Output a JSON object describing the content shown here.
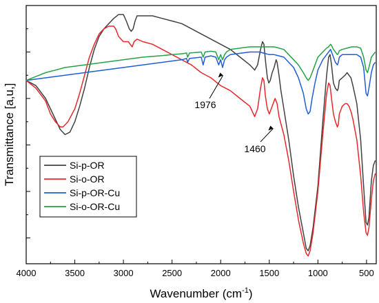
{
  "chart_data": {
    "type": "line",
    "xlabel": "Wavenumber (cm",
    "xlabel_sup": "-1",
    "xlabel_end": ")",
    "ylabel": "Transmittance [a,u,]",
    "xlim": [
      4000,
      400
    ],
    "x_reversed": true,
    "ylim": [
      0,
      100
    ],
    "grid": false,
    "y_tick_labels": false,
    "legend_placement": "lower-left",
    "x_ticks": [
      {
        "value": 4000,
        "label": "4000"
      },
      {
        "value": 3500,
        "label": "3500"
      },
      {
        "value": 3000,
        "label": "3000"
      },
      {
        "value": 2500,
        "label": "2500"
      },
      {
        "value": 2000,
        "label": "2000"
      },
      {
        "value": 1500,
        "label": "1500"
      },
      {
        "value": 1000,
        "label": "1000"
      },
      {
        "value": 500,
        "label": "500"
      }
    ],
    "annotations": [
      {
        "label": "1976",
        "x": 1976,
        "y": 74
      },
      {
        "label": "1460",
        "x": 1460,
        "y": 54
      }
    ],
    "series": [
      {
        "name": "Si-p-OR",
        "color": "#404040",
        "points": [
          [
            4000,
            71
          ],
          [
            3900,
            69
          ],
          [
            3800,
            64
          ],
          [
            3700,
            56
          ],
          [
            3650,
            52
          ],
          [
            3600,
            50
          ],
          [
            3550,
            51
          ],
          [
            3500,
            55
          ],
          [
            3450,
            61
          ],
          [
            3400,
            68
          ],
          [
            3350,
            76
          ],
          [
            3300,
            83
          ],
          [
            3250,
            88
          ],
          [
            3200,
            91
          ],
          [
            3150,
            93
          ],
          [
            3100,
            95
          ],
          [
            3050,
            96.5
          ],
          [
            3000,
            96.5
          ],
          [
            2970,
            94
          ],
          [
            2940,
            91
          ],
          [
            2920,
            90
          ],
          [
            2900,
            91
          ],
          [
            2880,
            94
          ],
          [
            2860,
            96
          ],
          [
            2800,
            96
          ],
          [
            2700,
            96
          ],
          [
            2600,
            95
          ],
          [
            2500,
            94
          ],
          [
            2400,
            93
          ],
          [
            2300,
            91
          ],
          [
            2200,
            89
          ],
          [
            2100,
            87
          ],
          [
            2000,
            85
          ],
          [
            1900,
            83
          ],
          [
            1800,
            80
          ],
          [
            1700,
            77
          ],
          [
            1650,
            75
          ],
          [
            1620,
            77
          ],
          [
            1590,
            83
          ],
          [
            1570,
            86
          ],
          [
            1555,
            85
          ],
          [
            1540,
            79
          ],
          [
            1520,
            72
          ],
          [
            1505,
            70
          ],
          [
            1490,
            71
          ],
          [
            1470,
            74
          ],
          [
            1450,
            76
          ],
          [
            1430,
            79
          ],
          [
            1420,
            78
          ],
          [
            1400,
            73
          ],
          [
            1380,
            67
          ],
          [
            1350,
            60
          ],
          [
            1300,
            48
          ],
          [
            1250,
            34
          ],
          [
            1200,
            22
          ],
          [
            1150,
            12
          ],
          [
            1120,
            6
          ],
          [
            1100,
            5
          ],
          [
            1080,
            7
          ],
          [
            1050,
            14
          ],
          [
            1000,
            30
          ],
          [
            950,
            55
          ],
          [
            910,
            73
          ],
          [
            890,
            80
          ],
          [
            875,
            81
          ],
          [
            860,
            77
          ],
          [
            840,
            70
          ],
          [
            820,
            68
          ],
          [
            800,
            67
          ],
          [
            790,
            68
          ],
          [
            780,
            71
          ],
          [
            750,
            72
          ],
          [
            720,
            73
          ],
          [
            700,
            74
          ],
          [
            680,
            73
          ],
          [
            660,
            72
          ],
          [
            640,
            69
          ],
          [
            600,
            62
          ],
          [
            560,
            48
          ],
          [
            530,
            30
          ],
          [
            505,
            16
          ],
          [
            490,
            15
          ],
          [
            475,
            18
          ],
          [
            450,
            32
          ],
          [
            430,
            38
          ],
          [
            410,
            40
          ]
        ]
      },
      {
        "name": "Si-o-OR",
        "color": "#e8262b",
        "points": [
          [
            4000,
            71
          ],
          [
            3900,
            68
          ],
          [
            3800,
            63
          ],
          [
            3750,
            58
          ],
          [
            3700,
            55
          ],
          [
            3650,
            53
          ],
          [
            3620,
            53
          ],
          [
            3570,
            55
          ],
          [
            3500,
            60
          ],
          [
            3450,
            66
          ],
          [
            3400,
            73
          ],
          [
            3350,
            80
          ],
          [
            3300,
            85
          ],
          [
            3250,
            89
          ],
          [
            3200,
            91
          ],
          [
            3150,
            92
          ],
          [
            3100,
            92
          ],
          [
            3080,
            91
          ],
          [
            3050,
            88
          ],
          [
            3000,
            86
          ],
          [
            2950,
            86
          ],
          [
            2930,
            85
          ],
          [
            2910,
            84
          ],
          [
            2890,
            86
          ],
          [
            2860,
            87
          ],
          [
            2800,
            86
          ],
          [
            2700,
            85
          ],
          [
            2600,
            83
          ],
          [
            2500,
            81
          ],
          [
            2400,
            79
          ],
          [
            2300,
            77
          ],
          [
            2200,
            74
          ],
          [
            2100,
            72
          ],
          [
            2000,
            69
          ],
          [
            1900,
            67
          ],
          [
            1800,
            64
          ],
          [
            1700,
            61
          ],
          [
            1650,
            57
          ],
          [
            1620,
            60
          ],
          [
            1590,
            68
          ],
          [
            1570,
            72
          ],
          [
            1555,
            71
          ],
          [
            1540,
            65
          ],
          [
            1520,
            60
          ],
          [
            1500,
            58
          ],
          [
            1480,
            60
          ],
          [
            1460,
            62
          ],
          [
            1440,
            64
          ],
          [
            1420,
            62
          ],
          [
            1400,
            57
          ],
          [
            1350,
            50
          ],
          [
            1300,
            40
          ],
          [
            1250,
            28
          ],
          [
            1200,
            17
          ],
          [
            1150,
            8
          ],
          [
            1120,
            4
          ],
          [
            1100,
            3
          ],
          [
            1080,
            5
          ],
          [
            1050,
            12
          ],
          [
            1000,
            28
          ],
          [
            950,
            50
          ],
          [
            910,
            66
          ],
          [
            890,
            70
          ],
          [
            875,
            69
          ],
          [
            860,
            64
          ],
          [
            840,
            58
          ],
          [
            820,
            55
          ],
          [
            800,
            53
          ],
          [
            790,
            54
          ],
          [
            780,
            58
          ],
          [
            750,
            61
          ],
          [
            720,
            62
          ],
          [
            700,
            62
          ],
          [
            680,
            61
          ],
          [
            660,
            59
          ],
          [
            640,
            56
          ],
          [
            600,
            48
          ],
          [
            560,
            34
          ],
          [
            530,
            20
          ],
          [
            505,
            12
          ],
          [
            490,
            11
          ],
          [
            475,
            14
          ],
          [
            450,
            25
          ],
          [
            430,
            32
          ],
          [
            410,
            35
          ]
        ]
      },
      {
        "name": "Si-p-OR-Cu",
        "color": "#1f5cd6",
        "points": [
          [
            4000,
            71
          ],
          [
            3900,
            71.5
          ],
          [
            3800,
            72
          ],
          [
            3700,
            72.5
          ],
          [
            3600,
            73
          ],
          [
            3500,
            73.5
          ],
          [
            3400,
            74
          ],
          [
            3300,
            74.5
          ],
          [
            3200,
            75
          ],
          [
            3100,
            75.5
          ],
          [
            3000,
            76
          ],
          [
            2900,
            76.5
          ],
          [
            2800,
            77
          ],
          [
            2700,
            77.5
          ],
          [
            2600,
            78
          ],
          [
            2500,
            78.5
          ],
          [
            2400,
            79
          ],
          [
            2350,
            79.5
          ],
          [
            2340,
            78
          ],
          [
            2320,
            79.5
          ],
          [
            2200,
            80
          ],
          [
            2180,
            77
          ],
          [
            2160,
            80
          ],
          [
            2100,
            80.5
          ],
          [
            2050,
            80
          ],
          [
            2020,
            77
          ],
          [
            2000,
            79
          ],
          [
            1980,
            76
          ],
          [
            1960,
            79
          ],
          [
            1940,
            80
          ],
          [
            1900,
            81
          ],
          [
            1800,
            81.5
          ],
          [
            1700,
            82
          ],
          [
            1650,
            82
          ],
          [
            1620,
            82
          ],
          [
            1600,
            82
          ],
          [
            1550,
            81.5
          ],
          [
            1500,
            81
          ],
          [
            1450,
            81
          ],
          [
            1400,
            80.5
          ],
          [
            1350,
            80
          ],
          [
            1300,
            78
          ],
          [
            1250,
            76
          ],
          [
            1200,
            72
          ],
          [
            1150,
            66
          ],
          [
            1120,
            60
          ],
          [
            1100,
            58
          ],
          [
            1080,
            59
          ],
          [
            1060,
            64
          ],
          [
            1030,
            70
          ],
          [
            1000,
            75
          ],
          [
            950,
            79
          ],
          [
            910,
            81
          ],
          [
            890,
            82
          ],
          [
            870,
            83
          ],
          [
            860,
            82
          ],
          [
            840,
            80
          ],
          [
            820,
            78
          ],
          [
            800,
            77
          ],
          [
            790,
            78
          ],
          [
            780,
            80
          ],
          [
            750,
            81
          ],
          [
            700,
            81
          ],
          [
            650,
            81
          ],
          [
            600,
            81
          ],
          [
            560,
            80
          ],
          [
            530,
            76
          ],
          [
            505,
            66
          ],
          [
            490,
            65
          ],
          [
            475,
            68
          ],
          [
            450,
            74
          ],
          [
            430,
            77
          ],
          [
            410,
            78
          ]
        ]
      },
      {
        "name": "Si-o-OR-Cu",
        "color": "#22a245",
        "points": [
          [
            4000,
            71
          ],
          [
            3900,
            72.5
          ],
          [
            3800,
            74
          ],
          [
            3700,
            75
          ],
          [
            3600,
            76
          ],
          [
            3500,
            76.5
          ],
          [
            3400,
            77
          ],
          [
            3300,
            77.5
          ],
          [
            3200,
            78
          ],
          [
            3100,
            78.5
          ],
          [
            3000,
            79
          ],
          [
            2900,
            79.5
          ],
          [
            2800,
            80
          ],
          [
            2700,
            80.3
          ],
          [
            2600,
            80.6
          ],
          [
            2500,
            81
          ],
          [
            2400,
            81.3
          ],
          [
            2350,
            81.6
          ],
          [
            2340,
            80
          ],
          [
            2320,
            81.6
          ],
          [
            2200,
            82
          ],
          [
            2180,
            80
          ],
          [
            2160,
            82
          ],
          [
            2100,
            82.3
          ],
          [
            2050,
            82
          ],
          [
            2020,
            79
          ],
          [
            2000,
            81
          ],
          [
            1980,
            79
          ],
          [
            1960,
            81
          ],
          [
            1940,
            82
          ],
          [
            1900,
            83
          ],
          [
            1800,
            83.5
          ],
          [
            1700,
            84
          ],
          [
            1650,
            84
          ],
          [
            1600,
            84
          ],
          [
            1550,
            84
          ],
          [
            1500,
            84
          ],
          [
            1450,
            84
          ],
          [
            1400,
            83.5
          ],
          [
            1350,
            83
          ],
          [
            1300,
            81
          ],
          [
            1250,
            79
          ],
          [
            1200,
            77
          ],
          [
            1150,
            74
          ],
          [
            1120,
            72
          ],
          [
            1100,
            71
          ],
          [
            1080,
            72
          ],
          [
            1060,
            74
          ],
          [
            1030,
            77
          ],
          [
            1000,
            80
          ],
          [
            950,
            82
          ],
          [
            910,
            83.5
          ],
          [
            890,
            84
          ],
          [
            870,
            85
          ],
          [
            860,
            84.5
          ],
          [
            840,
            83
          ],
          [
            820,
            82
          ],
          [
            800,
            81
          ],
          [
            790,
            81.5
          ],
          [
            780,
            82.5
          ],
          [
            750,
            83
          ],
          [
            700,
            83.5
          ],
          [
            650,
            84
          ],
          [
            600,
            84
          ],
          [
            560,
            83.5
          ],
          [
            530,
            80
          ],
          [
            505,
            75
          ],
          [
            490,
            74
          ],
          [
            475,
            76
          ],
          [
            450,
            80
          ],
          [
            430,
            81
          ],
          [
            410,
            82
          ]
        ]
      }
    ]
  }
}
